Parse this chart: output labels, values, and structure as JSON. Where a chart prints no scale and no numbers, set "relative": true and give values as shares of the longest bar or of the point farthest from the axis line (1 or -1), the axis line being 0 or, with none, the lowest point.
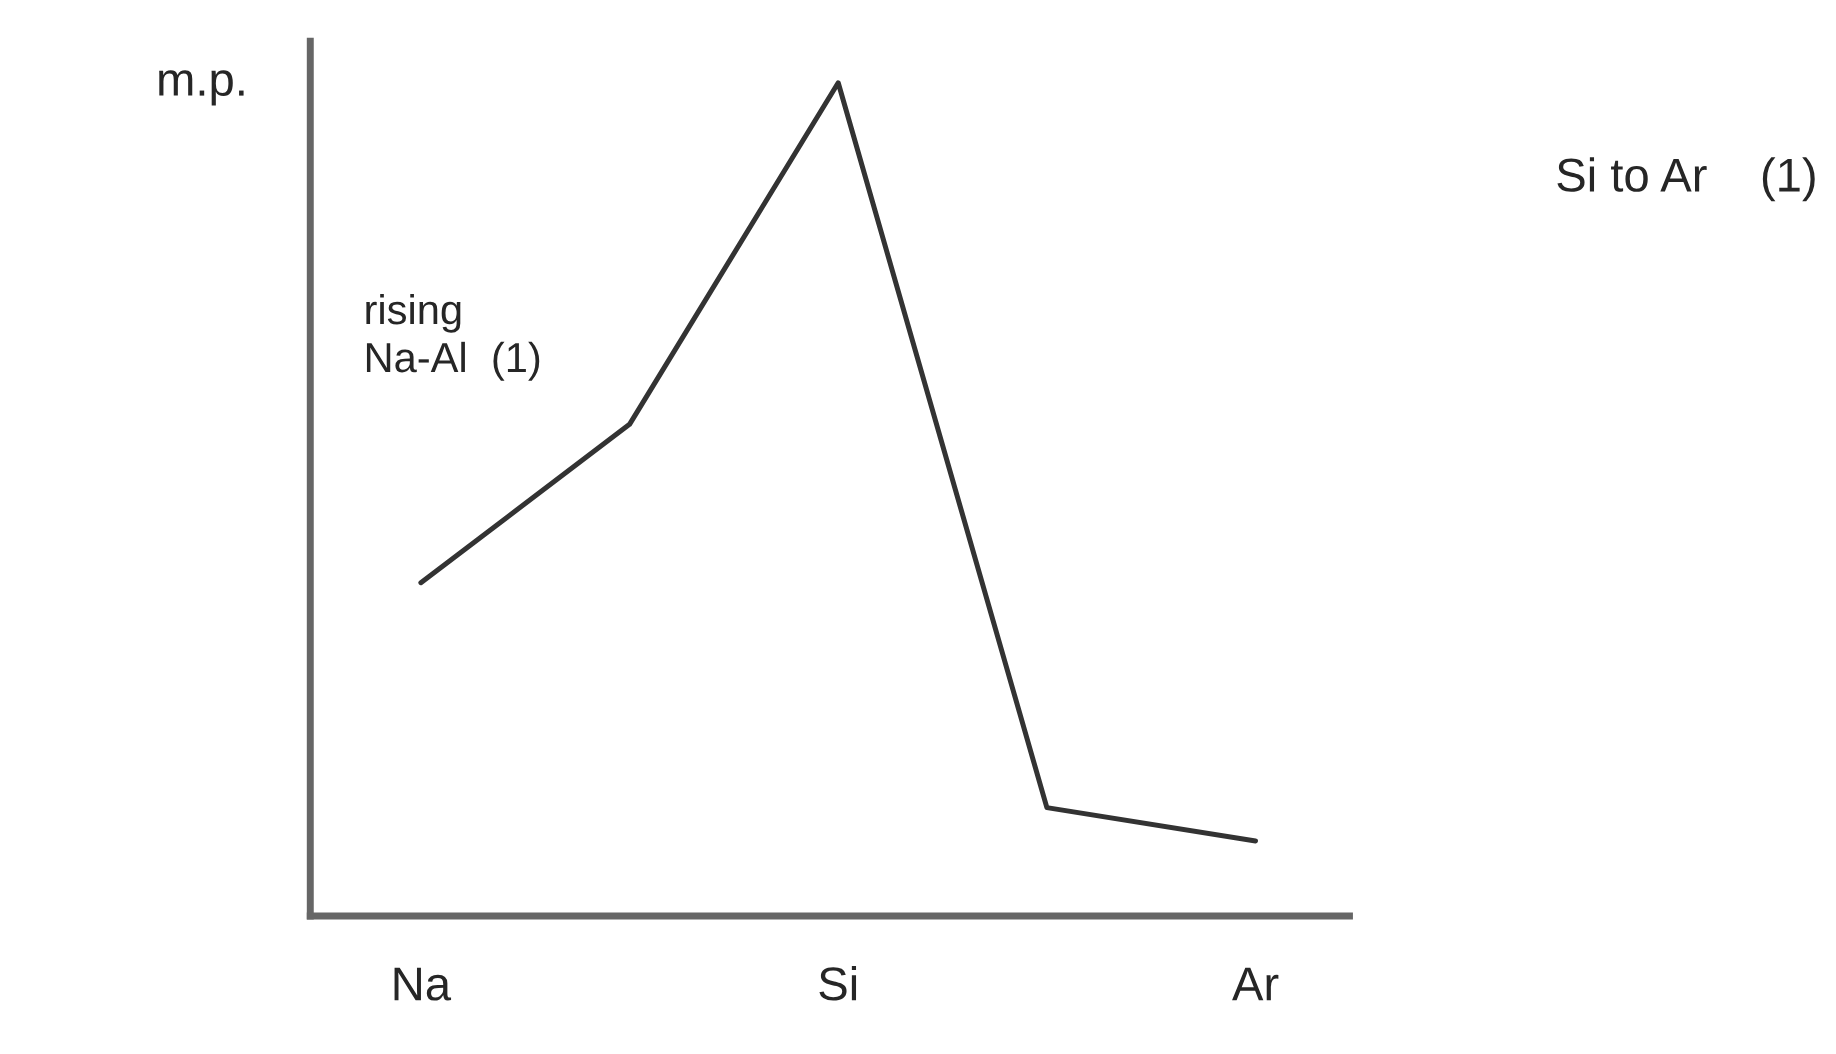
{
  "chart_data": {
    "type": "line",
    "relative": true,
    "ylabel": "m.p.",
    "categories": [
      "Na",
      null,
      "Si",
      null,
      "Ar"
    ],
    "series": [
      {
        "color": "#333333",
        "values": [
          0.4,
          0.59,
          1,
          0.13,
          0.09
        ]
      }
    ],
    "annotations": [
      "rising\nNa-Al  (1)",
      "Si to Ar    (1)"
    ],
    "grid": false,
    "marker": "none",
    "line_style": "solid"
  }
}
